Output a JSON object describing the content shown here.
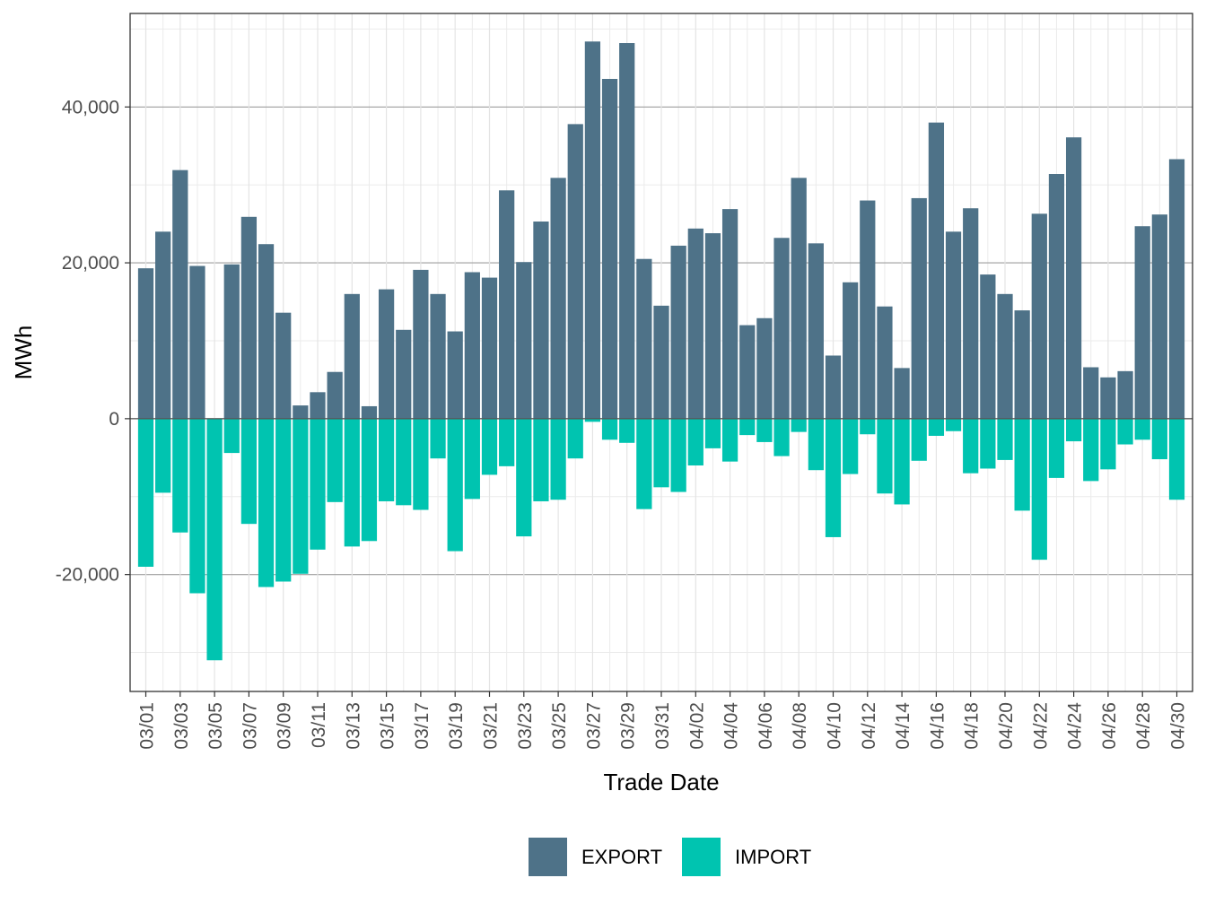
{
  "colors": {
    "export": "#4e7288",
    "import": "#00c4b0",
    "grid_major": "#bdbdbd",
    "grid_minor": "#ebebeb",
    "panel_border": "#333333",
    "zero_line": "#555555"
  },
  "chart_data": {
    "type": "bar",
    "stacked": "diverging",
    "xlabel": "Trade Date",
    "ylabel": "MWh",
    "ylim": [
      -35000,
      52000
    ],
    "yticks": [
      -20000,
      0,
      20000,
      40000
    ],
    "ytick_labels": [
      "-20,000",
      "0",
      "20,000",
      "40,000"
    ],
    "grid": true,
    "legend_position": "bottom",
    "categories": [
      "03/01",
      "03/02",
      "03/03",
      "03/04",
      "03/05",
      "03/06",
      "03/07",
      "03/08",
      "03/09",
      "03/10",
      "03/11",
      "03/12",
      "03/13",
      "03/14",
      "03/15",
      "03/16",
      "03/17",
      "03/18",
      "03/19",
      "03/20",
      "03/21",
      "03/22",
      "03/23",
      "03/24",
      "03/25",
      "03/26",
      "03/27",
      "03/28",
      "03/29",
      "03/30",
      "03/31",
      "04/01",
      "04/02",
      "04/03",
      "04/04",
      "04/05",
      "04/06",
      "04/07",
      "04/08",
      "04/09",
      "04/10",
      "04/11",
      "04/12",
      "04/13",
      "04/14",
      "04/15",
      "04/16",
      "04/17",
      "04/18",
      "04/19",
      "04/20",
      "04/21",
      "04/22",
      "04/23",
      "04/24",
      "04/25",
      "04/26",
      "04/27",
      "04/28",
      "04/29",
      "04/30"
    ],
    "xtick_labels": [
      "03/01",
      "03/03",
      "03/05",
      "03/07",
      "03/09",
      "03/11",
      "03/13",
      "03/15",
      "03/17",
      "03/19",
      "03/21",
      "03/23",
      "03/25",
      "03/27",
      "03/29",
      "03/31",
      "04/02",
      "04/04",
      "04/06",
      "04/08",
      "04/10",
      "04/12",
      "04/14",
      "04/16",
      "04/18",
      "04/20",
      "04/22",
      "04/24",
      "04/26",
      "04/28",
      "04/30"
    ],
    "series": [
      {
        "name": "EXPORT",
        "values": [
          19300,
          24000,
          31900,
          19600,
          0,
          19800,
          25900,
          22400,
          13600,
          1700,
          3400,
          6000,
          16000,
          1600,
          16600,
          11400,
          19100,
          16000,
          11200,
          18800,
          18100,
          29300,
          20100,
          25300,
          30900,
          37800,
          48400,
          43600,
          48200,
          20500,
          14500,
          22200,
          24400,
          23800,
          26900,
          12000,
          12900,
          23200,
          30900,
          22500,
          8100,
          17500,
          28000,
          14400,
          6500,
          28300,
          38000,
          24000,
          27000,
          18500,
          16000,
          13900,
          26300,
          31400,
          36100,
          6600,
          5300,
          6100,
          24700,
          26200,
          33300
        ]
      },
      {
        "name": "IMPORT",
        "values": [
          -19000,
          -9500,
          -14600,
          -22400,
          -31000,
          -4400,
          -13500,
          -21600,
          -20900,
          -19900,
          -16800,
          -10700,
          -16400,
          -15700,
          -10600,
          -11100,
          -11700,
          -5100,
          -17000,
          -10300,
          -7200,
          -6100,
          -15100,
          -10600,
          -10400,
          -5100,
          -400,
          -2700,
          -3100,
          -11600,
          -8800,
          -9400,
          -6000,
          -3800,
          -5500,
          -2100,
          -3000,
          -4800,
          -1700,
          -6600,
          -15200,
          -7100,
          -2000,
          -9600,
          -11000,
          -5400,
          -2200,
          -1600,
          -7000,
          -6400,
          -5300,
          -11800,
          -18100,
          -7600,
          -2900,
          -8000,
          -6500,
          -3300,
          -2700,
          -5200,
          -10400
        ]
      }
    ]
  }
}
